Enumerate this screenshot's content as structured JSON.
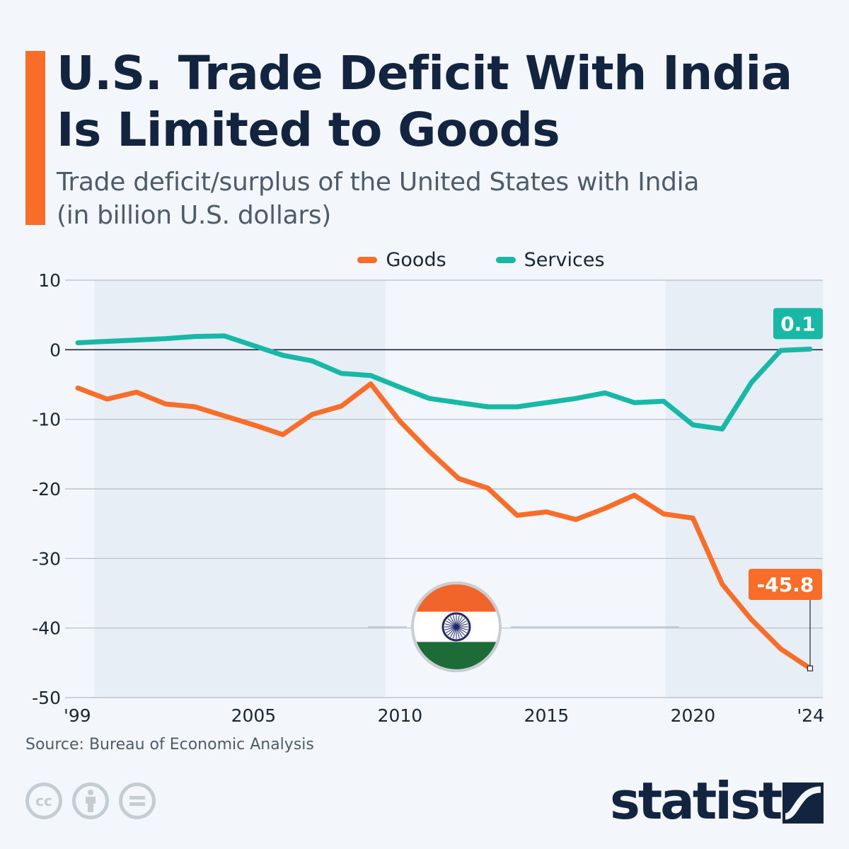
{
  "header": {
    "title_line1": "U.S. Trade Deficit With India",
    "title_line2": "Is Limited to Goods",
    "subtitle_line1": "Trade deficit/surplus of the United States with India",
    "subtitle_line2": "(in billion U.S. dollars)"
  },
  "colors": {
    "goods": "#f86e28",
    "services": "#17b8a6",
    "accent": "#f86e28",
    "title": "#12243f"
  },
  "chart_data": {
    "type": "line",
    "title": "U.S. Trade Deficit With India Is Limited to Goods",
    "subtitle": "Trade deficit/surplus of the United States with India (in billion U.S. dollars)",
    "xlabel": "",
    "ylabel": "",
    "x": [
      1999,
      2000,
      2001,
      2002,
      2003,
      2004,
      2005,
      2006,
      2007,
      2008,
      2009,
      2010,
      2011,
      2012,
      2013,
      2014,
      2015,
      2016,
      2017,
      2018,
      2019,
      2020,
      2021,
      2022,
      2023,
      2024
    ],
    "x_ticks": [
      1999,
      2005,
      2010,
      2015,
      2020,
      2024
    ],
    "x_tick_labels": [
      "'99",
      "2005",
      "2010",
      "2015",
      "2020",
      "'24"
    ],
    "ylim": [
      -50,
      10
    ],
    "y_ticks": [
      10,
      0,
      -10,
      -20,
      -30,
      -40,
      -50
    ],
    "y_tick_labels": [
      "10",
      "0",
      "-10",
      "-20",
      "-30",
      "-40",
      "-50"
    ],
    "grid": true,
    "legend_position": "top-center",
    "shaded_ranges": [
      [
        2000,
        2009.5
      ],
      [
        2019.5,
        2024.5
      ]
    ],
    "series": [
      {
        "name": "Goods",
        "color": "#f86e28",
        "values": [
          -5.5,
          -7.1,
          -6.1,
          -7.8,
          -8.2,
          -9.5,
          -10.8,
          -12.2,
          -9.3,
          -8.1,
          -4.9,
          -10.3,
          -14.6,
          -18.5,
          -19.9,
          -23.8,
          -23.3,
          -24.4,
          -22.8,
          -20.9,
          -23.6,
          -24.2,
          -33.7,
          -38.8,
          -43.0,
          -45.8
        ],
        "end_label": "-45.8"
      },
      {
        "name": "Services",
        "color": "#17b8a6",
        "values": [
          1.0,
          1.2,
          1.4,
          1.6,
          1.9,
          2.0,
          0.6,
          -0.8,
          -1.6,
          -3.4,
          -3.7,
          -5.4,
          -7.0,
          -7.6,
          -8.2,
          -8.2,
          -7.6,
          -7.0,
          -6.2,
          -7.6,
          -7.4,
          -10.8,
          -11.4,
          -4.7,
          -0.1,
          0.1
        ],
        "end_label": "0.1"
      }
    ]
  },
  "footer": {
    "source": "Source: Bureau of Economic Analysis",
    "cc_icons": [
      "cc-icon",
      "attribution-icon",
      "no-derivatives-icon"
    ],
    "cc_label": "cc",
    "logo": "statista"
  }
}
